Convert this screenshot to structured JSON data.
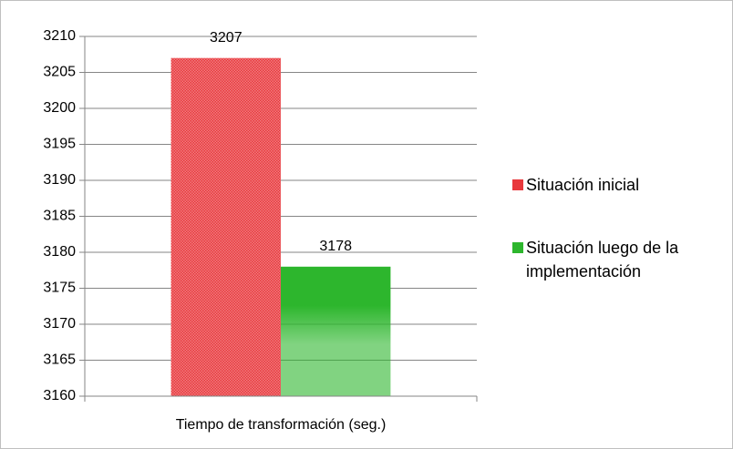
{
  "chart_data": {
    "type": "bar",
    "categories": [
      "Tiempo de transformación (seg.)"
    ],
    "series": [
      {
        "name": "Situación inicial",
        "color": "#e8383c",
        "values": [
          3207
        ]
      },
      {
        "name": "Situación luego de la implementación",
        "color": "#2db62d",
        "values": [
          3178
        ]
      }
    ],
    "ylim": [
      3160,
      3210
    ],
    "yticks": [
      3160,
      3165,
      3170,
      3175,
      3180,
      3185,
      3190,
      3195,
      3200,
      3205,
      3210
    ],
    "grid": true,
    "legend": "right"
  }
}
